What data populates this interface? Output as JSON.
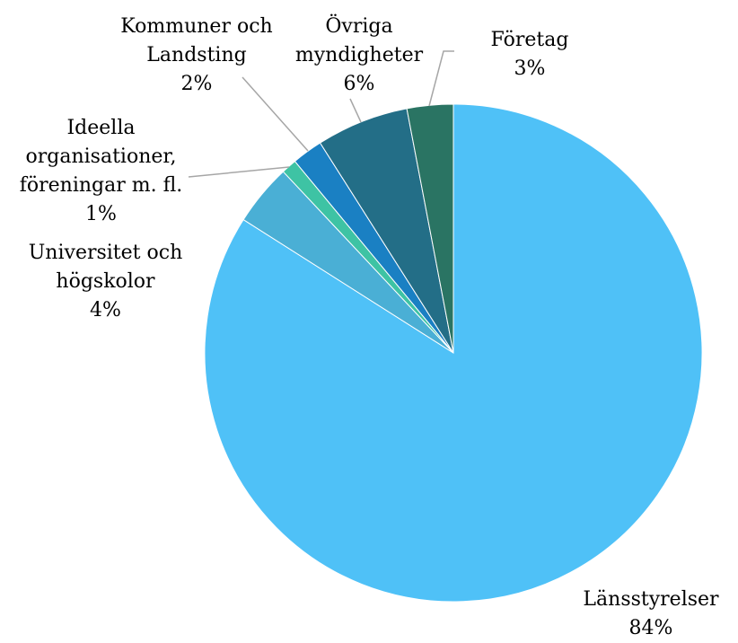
{
  "chart_data": {
    "type": "pie",
    "categories": [
      "Länsstyrelser",
      "Universitet och högskolor",
      "Ideella organisationer, föreningar m. fl.",
      "Kommuner och Landsting",
      "Övriga myndigheter",
      "Företag"
    ],
    "values": [
      84,
      4,
      1,
      2,
      6,
      3
    ],
    "value_labels": [
      "84%",
      "4%",
      "1%",
      "2%",
      "6%",
      "3%"
    ],
    "colors": [
      "#4fc1f7",
      "#4aafd5",
      "#3ec3a4",
      "#1a80c3",
      "#236e87",
      "#2a7463"
    ]
  }
}
